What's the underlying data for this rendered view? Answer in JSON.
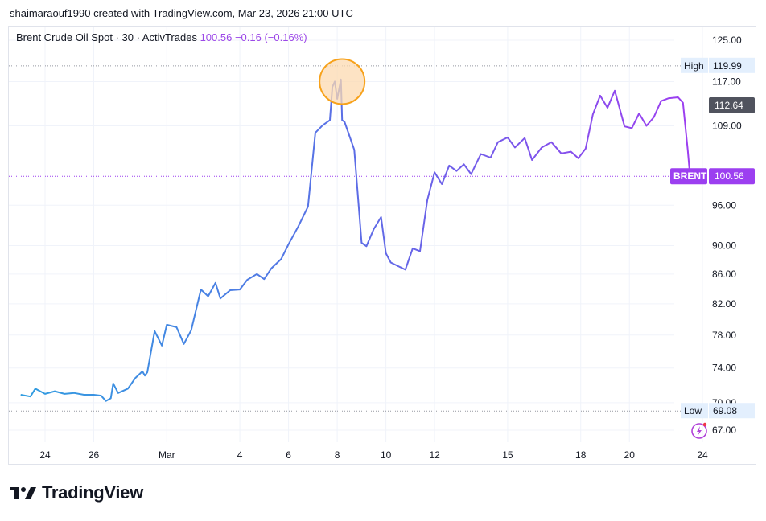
{
  "header": {
    "caption": "shaimaraouf1990 created with TradingView.com, Mar 23, 2026 21:00 UTC"
  },
  "legend": {
    "symbol": "Brent Crude Oil Spot · 30 · ActivTrades",
    "last": "100.56",
    "change": "−0.16 (−0.16%)"
  },
  "brand": {
    "name": "TradingView"
  },
  "colors": {
    "grid": "#f0f3fa",
    "line_start": "#2f9fe0",
    "line_mid": "#5b6ee6",
    "line_end": "#9c3ff0",
    "accent_purple": "#9c3ff0",
    "price_badge": "#50535e",
    "highlight_fill": "#fcd9b0",
    "highlight_stroke": "#f7a21b",
    "dotted_line": "#9598a1"
  },
  "chart_data": {
    "type": "line",
    "title": "Brent Crude Oil Spot · 30 · ActivTrades",
    "xlabel": "",
    "ylabel": "",
    "x_ticks": [
      "24",
      "26",
      "Mar",
      "4",
      "6",
      "8",
      "10",
      "12",
      "15",
      "18",
      "20",
      "24"
    ],
    "x_tick_days": [
      -5,
      -3,
      0,
      3,
      5,
      7,
      9,
      11,
      14,
      17,
      19,
      22
    ],
    "y_ticks": [
      67.0,
      70.0,
      74.0,
      78.0,
      82.0,
      86.0,
      90.0,
      96.0,
      109.0,
      117.0,
      125.0
    ],
    "ylim": [
      65,
      128
    ],
    "xlim_days": [
      -6.1,
      22.0
    ],
    "high": {
      "label": "High",
      "value": "119.99"
    },
    "low": {
      "label": "Low",
      "value": "69.08"
    },
    "last_price": {
      "label": "BRENT",
      "value": "100.56"
    },
    "prev_marker": {
      "value": "112.64"
    },
    "highlight_point": {
      "day": 7.2,
      "value": 117.0
    },
    "series": [
      {
        "name": "BRENT",
        "days": [
          -6.0,
          -5.6,
          -5.4,
          -5.0,
          -4.6,
          -4.2,
          -3.8,
          -3.4,
          -3.0,
          -2.7,
          -2.5,
          -2.3,
          -2.2,
          -2.0,
          -1.6,
          -1.3,
          -1.0,
          -0.9,
          -0.8,
          -0.5,
          -0.2,
          0.0,
          0.4,
          0.7,
          1.0,
          1.4,
          1.7,
          2.0,
          2.2,
          2.6,
          3.0,
          3.3,
          3.7,
          4.0,
          4.3,
          4.7,
          5.0,
          5.4,
          5.8,
          6.1,
          6.4,
          6.7,
          6.8,
          6.9,
          7.0,
          7.15,
          7.2,
          7.3,
          7.5,
          7.7,
          8.0,
          8.2,
          8.5,
          8.8,
          9.0,
          9.2,
          9.5,
          9.8,
          10.1,
          10.4,
          10.7,
          11.0,
          11.3,
          11.6,
          11.9,
          12.2,
          12.5,
          12.9,
          13.3,
          13.6,
          14.0,
          14.3,
          14.7,
          15.0,
          15.4,
          15.8,
          16.2,
          16.6,
          16.9,
          17.2,
          17.5,
          17.8,
          18.1,
          18.4,
          18.8,
          19.1,
          19.4,
          19.7,
          20.0,
          20.3,
          20.6,
          21.0,
          21.2,
          21.4,
          21.5,
          21.6
        ],
        "values": [
          70.9,
          70.7,
          71.6,
          71.0,
          71.3,
          71.0,
          71.1,
          70.9,
          70.9,
          70.8,
          70.2,
          70.5,
          72.2,
          71.1,
          71.6,
          72.8,
          73.6,
          73.1,
          73.5,
          78.5,
          76.7,
          79.3,
          79.0,
          76.9,
          78.6,
          83.9,
          83.0,
          84.8,
          82.7,
          83.8,
          83.9,
          85.2,
          86.0,
          85.3,
          86.8,
          88.1,
          90.2,
          92.8,
          95.8,
          107.8,
          109.1,
          110.0,
          116.0,
          117.0,
          113.8,
          117.4,
          110.0,
          109.7,
          107.3,
          104.9,
          90.4,
          89.9,
          92.4,
          94.2,
          88.9,
          87.6,
          87.1,
          86.6,
          89.6,
          89.2,
          96.8,
          101.2,
          99.3,
          102.3,
          101.4,
          102.5,
          100.9,
          104.2,
          103.6,
          106.2,
          107.0,
          105.3,
          106.9,
          103.2,
          105.3,
          106.2,
          104.3,
          104.6,
          103.5,
          105.1,
          111.0,
          114.4,
          112.2,
          115.3,
          108.9,
          108.6,
          111.2,
          109.0,
          110.5,
          113.4,
          113.9,
          114.1,
          113.1,
          104.8,
          100.1,
          100.56
        ]
      }
    ]
  }
}
